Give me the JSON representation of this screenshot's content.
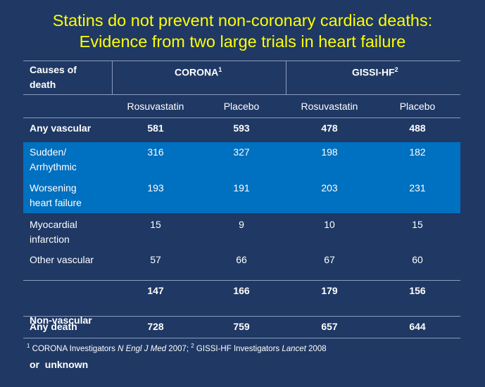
{
  "title": {
    "line1": "Statins do not prevent non-coronary cardiac deaths:",
    "line2": "Evidence from two large trials in heart failure"
  },
  "table": {
    "header": {
      "causes_line1": "Causes of",
      "causes_line2": "death",
      "corona": "CORONA",
      "corona_ref": "1",
      "gissi": "GISSI-HF",
      "gissi_ref": "2"
    },
    "subheader": [
      "Rosuvastatin",
      "Placebo",
      "Rosuvastatin",
      "Placebo"
    ],
    "rows": [
      {
        "label1": "Any vascular",
        "label2": "",
        "values": [
          "581",
          "593",
          "478",
          "488"
        ]
      },
      {
        "label1": "Sudden/",
        "label2": "Arrhythmic",
        "values": [
          "316",
          "327",
          "198",
          "182"
        ]
      },
      {
        "label1": "Worsening",
        "label2": "heart failure",
        "values": [
          "193",
          "191",
          "203",
          "231"
        ]
      },
      {
        "label1": "Myocardial",
        "label2": "infarction",
        "values": [
          "15",
          "9",
          "10",
          "15"
        ]
      },
      {
        "label1": "Other vascular",
        "label2": "",
        "values": [
          "57",
          "66",
          "67",
          "60"
        ]
      },
      {
        "label1": "Non-vascular",
        "label2": "or  unknown",
        "values": [
          "147",
          "166",
          "179",
          "156"
        ]
      },
      {
        "label1": "Any death",
        "label2": "",
        "values": [
          "728",
          "759",
          "657",
          "644"
        ]
      }
    ]
  },
  "footnote": {
    "ref1": "1",
    "text1": " CORONA Investigators ",
    "journal1": "N Engl J Med",
    "year1": " 2007; ",
    "ref2": "2",
    "text2": " GISSI-HF Investigators ",
    "journal2": "Lancet",
    "year2": " 2008"
  },
  "colors": {
    "background": "#1f3864",
    "title": "#ffff00",
    "highlight": "#0070c0",
    "rule": "#8c9cc0"
  }
}
